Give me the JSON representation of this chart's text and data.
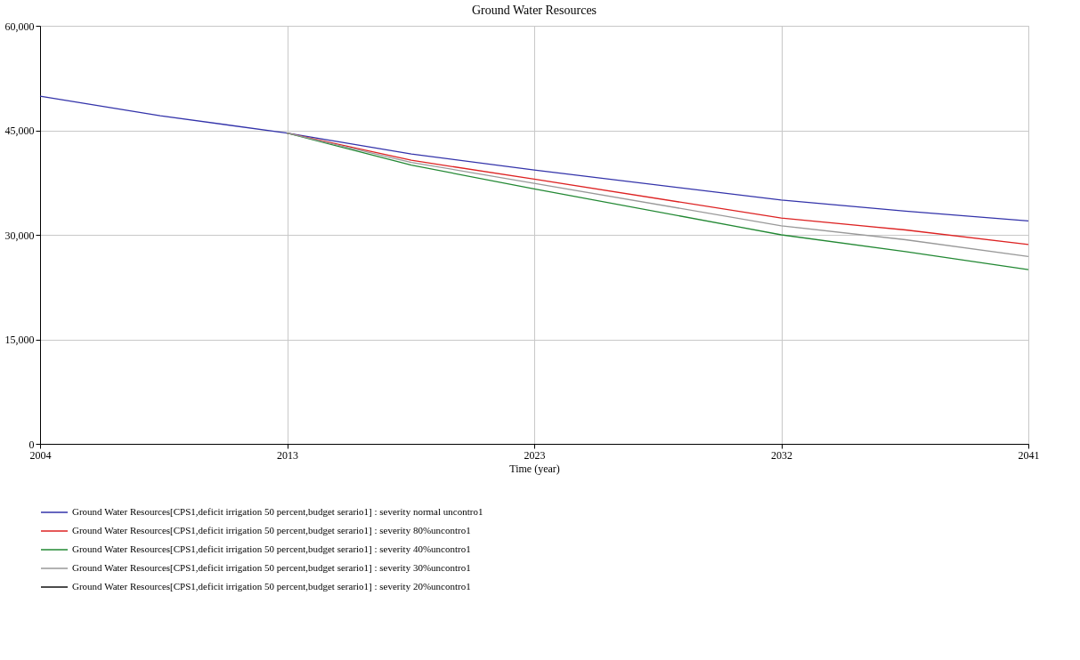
{
  "chart_data": {
    "type": "line",
    "title": "Ground Water Resources",
    "xlabel": "Time (year)",
    "xlim": [
      2004,
      2041
    ],
    "xticks": [
      2004,
      {
        "value": 2013.25,
        "label": "2013"
      },
      {
        "value": 2022.5,
        "label": "2023"
      },
      {
        "value": 2031.75,
        "label": "2032"
      },
      2041
    ],
    "ylim": [
      0,
      60000
    ],
    "yticks": [
      0,
      {
        "value": 15000,
        "label": "15,000"
      },
      {
        "value": 30000,
        "label": "30,000"
      },
      {
        "value": 45000,
        "label": "45,000"
      },
      {
        "value": 60000,
        "label": "60,000"
      }
    ],
    "grid": true,
    "legend": "bottom",
    "line_style": "solid",
    "marker": "none",
    "series": [
      {
        "name": "Ground Water Resources[CPS1,deficit irrigation 50 percent,budget serario1] : severity normal uncontro1",
        "color": "#3333aa",
        "x": [
          2004,
          2008.5,
          2013.25,
          2017.9,
          2022.5,
          2031.75,
          2036.4,
          2041
        ],
        "values": [
          49900,
          47100,
          44600,
          41600,
          39300,
          35000,
          33400,
          32000
        ]
      },
      {
        "name": "Ground Water Resources[CPS1,deficit irrigation 50 percent,budget serario1] : severity 80%uncontro1",
        "color": "#dd2222",
        "x": [
          2013.25,
          2017.9,
          2022.5,
          2031.75,
          2036.4,
          2041
        ],
        "values": [
          44600,
          40700,
          38000,
          32400,
          30700,
          28600
        ]
      },
      {
        "name": "Ground Water Resources[CPS1,deficit irrigation 50 percent,budget serario1] : severity 40%uncontro1",
        "color": "#228833",
        "x": [
          2013.25,
          2017.9,
          2022.5,
          2031.75,
          2036.4,
          2041
        ],
        "values": [
          44600,
          40000,
          36600,
          30000,
          27600,
          25000
        ]
      },
      {
        "name": "Ground Water Resources[CPS1,deficit irrigation 50 percent,budget serario1] : severity 30%uncontro1",
        "color": "#999999",
        "x": [
          2013.25,
          2017.9,
          2022.5,
          2031.75,
          2036.4,
          2041
        ],
        "values": [
          44600,
          40400,
          37400,
          31300,
          29300,
          26900
        ]
      },
      {
        "name": "Ground Water Resources[CPS1,deficit irrigation 50 percent,budget serario1] : severity 20%uncontro1",
        "color": "#111111"
      }
    ]
  }
}
